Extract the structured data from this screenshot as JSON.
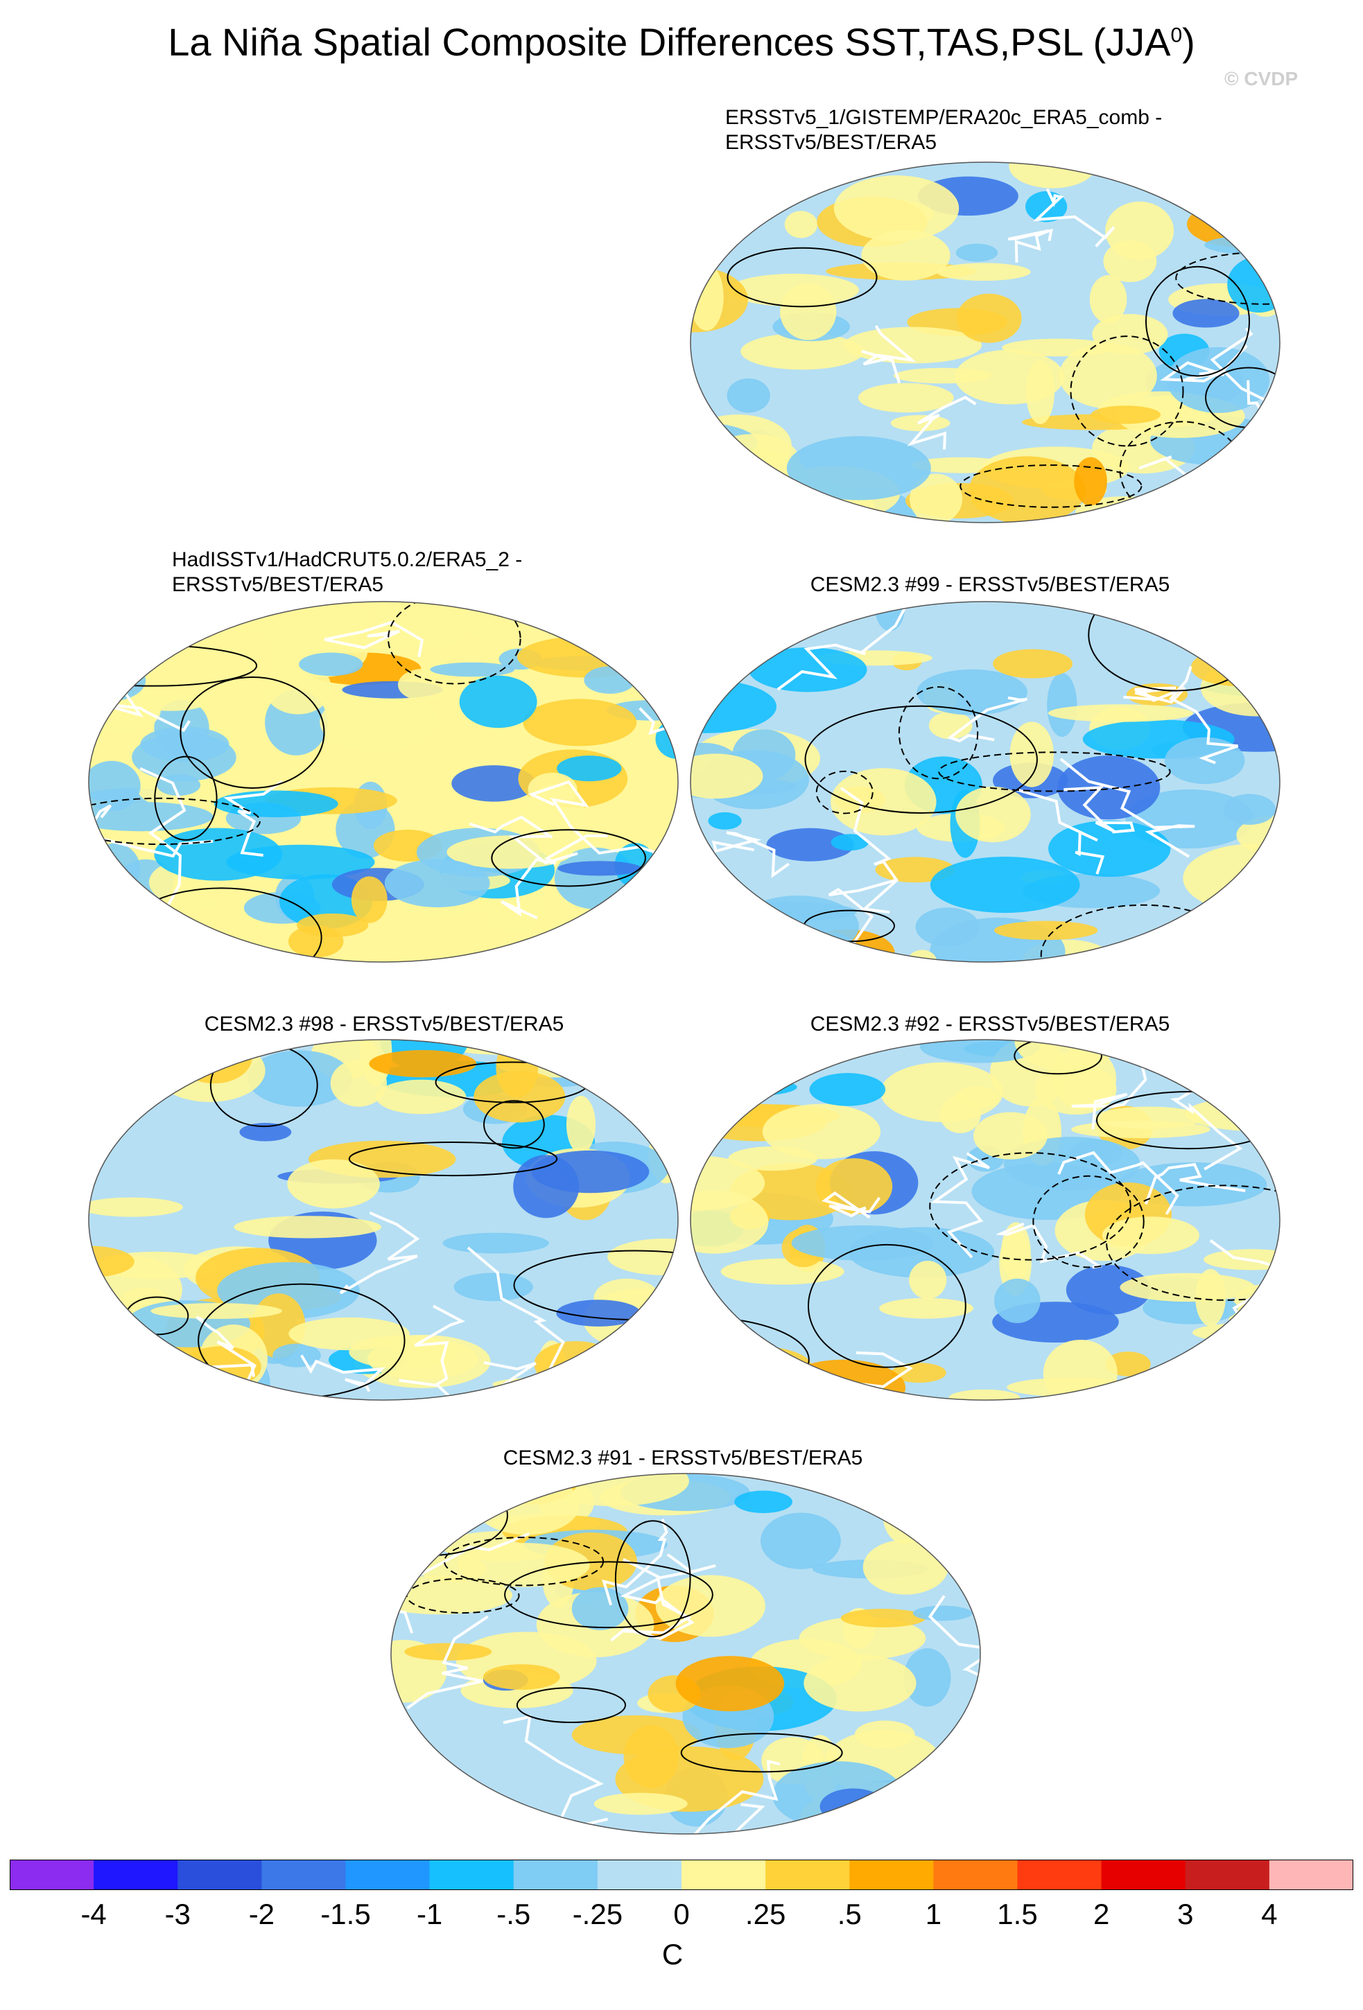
{
  "title": {
    "main": "La Niña Spatial Composite Differences SST,TAS,PSL (JJA",
    "sup": "0",
    "close": ")"
  },
  "watermark": "© CVDP",
  "panels": [
    {
      "line1": "ERSSTv5_1/GISTEMP/ERA20c_ERA5_comb -",
      "line2": "ERSSTv5/BEST/ERA5"
    },
    {
      "line1": "HadISSTv1/HadCRUT5.0.2/ERA5_2 -",
      "line2": "ERSSTv5/BEST/ERA5"
    },
    {
      "line1": "CESM2.3 #99 - ERSSTv5/BEST/ERA5"
    },
    {
      "line1": "CESM2.3 #98 - ERSSTv5/BEST/ERA5"
    },
    {
      "line1": "CESM2.3 #92 - ERSSTv5/BEST/ERA5"
    },
    {
      "line1": "CESM2.3 #91 - ERSSTv5/BEST/ERA5"
    }
  ],
  "colorbar": {
    "colors": [
      "#8b2cf0",
      "#1e17ff",
      "#2a4fdc",
      "#3c78e8",
      "#1f97ff",
      "#16c0ff",
      "#7fccf4",
      "#b6dff3",
      "#fff79a",
      "#ffd23a",
      "#ffaa00",
      "#ff7a10",
      "#ff3b10",
      "#e60000",
      "#c81e1e",
      "#ffb6b6"
    ],
    "labels": [
      "-4",
      "-3",
      "-2",
      "-1.5",
      "-1",
      "-.5",
      "-.25",
      "0",
      ".25",
      ".5",
      "1",
      "1.5",
      "2",
      "3",
      "4"
    ],
    "units": "C"
  }
}
